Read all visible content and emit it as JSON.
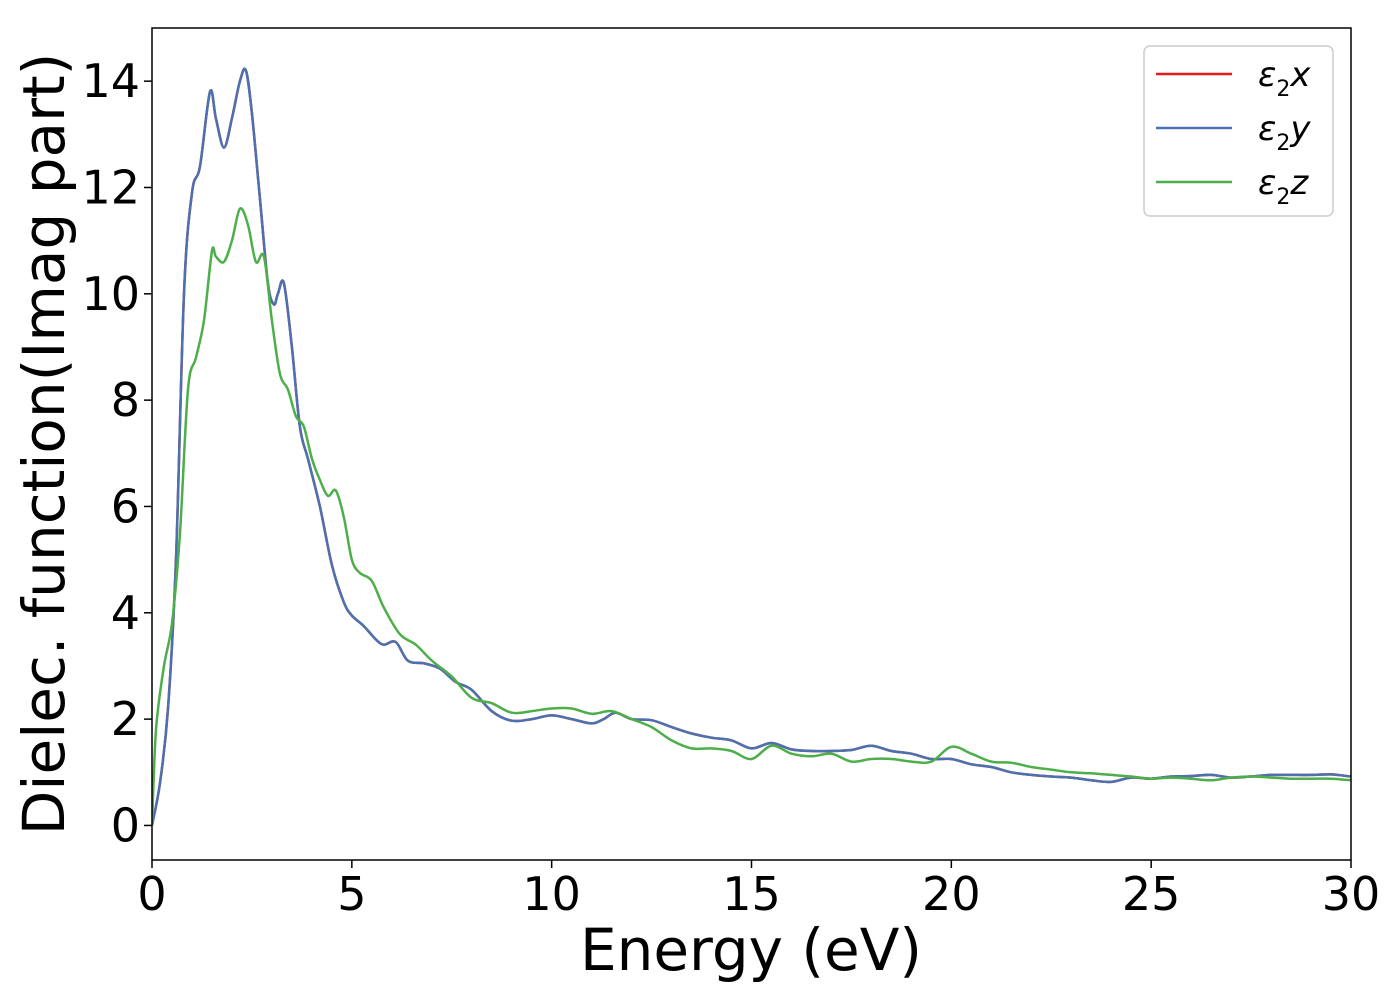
{
  "chart_data": {
    "type": "line",
    "xlabel": "Energy (eV)",
    "ylabel": "Dielec. function(Imag part)",
    "xlim": [
      0,
      30
    ],
    "ylim": [
      -0.65,
      15
    ],
    "xticks": [
      0,
      5,
      10,
      15,
      20,
      25,
      30
    ],
    "yticks": [
      0,
      2,
      4,
      6,
      8,
      10,
      12,
      14
    ],
    "grid": false,
    "legend_position": "top-right",
    "series": [
      {
        "name": "ε₂x",
        "legend": {
          "base": "ε",
          "sub": "2",
          "tail": "x"
        },
        "color": "#e41a1c",
        "x": [
          0,
          0.2,
          0.4,
          0.6,
          0.8,
          1.0,
          1.2,
          1.45,
          1.6,
          1.8,
          2.0,
          2.2,
          2.35,
          2.5,
          2.7,
          2.9,
          3.05,
          3.15,
          3.3,
          3.5,
          3.7,
          3.9,
          4.2,
          4.5,
          4.8,
          5.0,
          5.3,
          5.6,
          5.8,
          6.1,
          6.4,
          6.8,
          7.2,
          7.6,
          8.0,
          8.5,
          9.0,
          9.5,
          10.0,
          10.5,
          11.0,
          11.3,
          11.6,
          12.0,
          12.5,
          13.0,
          13.5,
          14.0,
          14.5,
          15.0,
          15.5,
          16.0,
          16.5,
          17.0,
          17.5,
          18.0,
          18.5,
          19.0,
          19.5,
          20.0,
          20.5,
          21.0,
          21.5,
          22.0,
          22.5,
          23.0,
          23.5,
          24.0,
          24.5,
          25.0,
          25.5,
          26.0,
          26.5,
          27.0,
          27.5,
          28.0,
          28.5,
          29.0,
          29.5,
          30.0
        ],
        "y": [
          0,
          0.8,
          2.2,
          5.0,
          10.0,
          11.9,
          12.4,
          13.8,
          13.3,
          12.75,
          13.3,
          14.0,
          14.2,
          13.4,
          11.8,
          10.2,
          9.8,
          10.0,
          10.2,
          9.0,
          7.5,
          6.9,
          6.0,
          4.9,
          4.2,
          3.95,
          3.75,
          3.5,
          3.4,
          3.45,
          3.1,
          3.05,
          2.95,
          2.7,
          2.55,
          2.15,
          1.97,
          2.0,
          2.07,
          2.0,
          1.92,
          2.0,
          2.12,
          2.0,
          1.98,
          1.85,
          1.73,
          1.65,
          1.6,
          1.45,
          1.55,
          1.43,
          1.4,
          1.4,
          1.42,
          1.5,
          1.4,
          1.35,
          1.25,
          1.25,
          1.15,
          1.1,
          1.0,
          0.95,
          0.92,
          0.9,
          0.85,
          0.82,
          0.9,
          0.88,
          0.92,
          0.93,
          0.95,
          0.9,
          0.92,
          0.95,
          0.95,
          0.95,
          0.96,
          0.92
        ]
      },
      {
        "name": "ε₂y",
        "legend": {
          "base": "ε",
          "sub": "2",
          "tail": "y"
        },
        "color": "#4a72b0",
        "x": [
          0,
          0.2,
          0.4,
          0.6,
          0.8,
          1.0,
          1.2,
          1.45,
          1.6,
          1.8,
          2.0,
          2.2,
          2.35,
          2.5,
          2.7,
          2.9,
          3.05,
          3.15,
          3.3,
          3.5,
          3.7,
          3.9,
          4.2,
          4.5,
          4.8,
          5.0,
          5.3,
          5.6,
          5.8,
          6.1,
          6.4,
          6.8,
          7.2,
          7.6,
          8.0,
          8.5,
          9.0,
          9.5,
          10.0,
          10.5,
          11.0,
          11.3,
          11.6,
          12.0,
          12.5,
          13.0,
          13.5,
          14.0,
          14.5,
          15.0,
          15.5,
          16.0,
          16.5,
          17.0,
          17.5,
          18.0,
          18.5,
          19.0,
          19.5,
          20.0,
          20.5,
          21.0,
          21.5,
          22.0,
          22.5,
          23.0,
          23.5,
          24.0,
          24.5,
          25.0,
          25.5,
          26.0,
          26.5,
          27.0,
          27.5,
          28.0,
          28.5,
          29.0,
          29.5,
          30.0
        ],
        "y": [
          0,
          0.8,
          2.2,
          5.0,
          10.0,
          11.9,
          12.4,
          13.8,
          13.3,
          12.75,
          13.3,
          14.0,
          14.2,
          13.4,
          11.8,
          10.2,
          9.8,
          10.0,
          10.2,
          9.0,
          7.5,
          6.9,
          6.0,
          4.9,
          4.2,
          3.95,
          3.75,
          3.5,
          3.4,
          3.45,
          3.1,
          3.05,
          2.95,
          2.7,
          2.55,
          2.15,
          1.97,
          2.0,
          2.07,
          2.0,
          1.92,
          2.0,
          2.12,
          2.0,
          1.98,
          1.85,
          1.73,
          1.65,
          1.6,
          1.45,
          1.55,
          1.43,
          1.4,
          1.4,
          1.42,
          1.5,
          1.4,
          1.35,
          1.25,
          1.25,
          1.15,
          1.1,
          1.0,
          0.95,
          0.92,
          0.9,
          0.85,
          0.82,
          0.9,
          0.88,
          0.92,
          0.93,
          0.95,
          0.9,
          0.92,
          0.95,
          0.95,
          0.95,
          0.96,
          0.92
        ]
      },
      {
        "name": "ε₂z",
        "legend": {
          "base": "ε",
          "sub": "2",
          "tail": "z"
        },
        "color": "#4daf4a",
        "x": [
          0,
          0.1,
          0.3,
          0.5,
          0.7,
          0.9,
          1.1,
          1.3,
          1.5,
          1.6,
          1.8,
          2.0,
          2.2,
          2.4,
          2.6,
          2.8,
          3.0,
          3.2,
          3.4,
          3.6,
          3.8,
          4.0,
          4.2,
          4.4,
          4.6,
          4.8,
          5.0,
          5.2,
          5.5,
          5.8,
          6.2,
          6.6,
          7.0,
          7.5,
          8.0,
          8.5,
          9.0,
          9.5,
          10.0,
          10.5,
          11.0,
          11.5,
          12.0,
          12.5,
          13.0,
          13.5,
          14.0,
          14.5,
          15.0,
          15.5,
          16.0,
          16.5,
          17.0,
          17.5,
          18.0,
          18.5,
          19.0,
          19.5,
          20.0,
          20.5,
          21.0,
          21.5,
          22.0,
          22.5,
          23.0,
          23.5,
          24.0,
          24.5,
          25.0,
          25.5,
          26.0,
          26.5,
          27.0,
          27.5,
          28.0,
          28.5,
          29.0,
          29.5,
          30.0
        ],
        "y": [
          0,
          1.8,
          3.0,
          3.8,
          5.5,
          8.2,
          8.8,
          9.5,
          10.8,
          10.7,
          10.6,
          11.0,
          11.6,
          11.3,
          10.6,
          10.7,
          9.5,
          8.5,
          8.2,
          7.7,
          7.5,
          6.9,
          6.5,
          6.2,
          6.3,
          5.8,
          5.0,
          4.75,
          4.6,
          4.1,
          3.6,
          3.4,
          3.1,
          2.8,
          2.4,
          2.3,
          2.12,
          2.15,
          2.2,
          2.2,
          2.1,
          2.15,
          2.0,
          1.85,
          1.6,
          1.45,
          1.45,
          1.4,
          1.25,
          1.5,
          1.35,
          1.3,
          1.35,
          1.2,
          1.25,
          1.25,
          1.2,
          1.2,
          1.48,
          1.35,
          1.2,
          1.18,
          1.1,
          1.05,
          1.0,
          0.98,
          0.95,
          0.92,
          0.88,
          0.9,
          0.88,
          0.85,
          0.9,
          0.92,
          0.9,
          0.88,
          0.88,
          0.88,
          0.85
        ]
      }
    ]
  }
}
